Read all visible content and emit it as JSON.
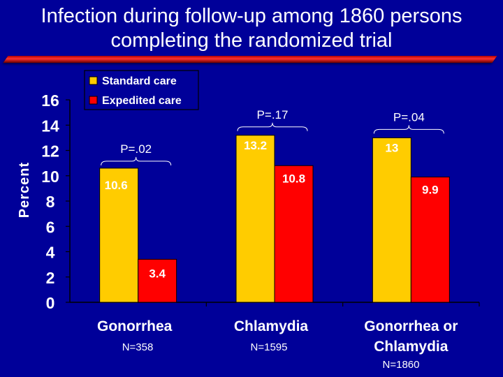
{
  "slide": {
    "title_line1": "Infection during follow-up among 1860 persons",
    "title_line2": "completing the randomized trial"
  },
  "colors": {
    "background": "#000099",
    "title_rule": "#e00000",
    "standard_care": "#ffcc00",
    "expedited_care": "#ff0000",
    "text": "#ffffff"
  },
  "chart_data": {
    "type": "bar",
    "title": "Infection during follow-up among 1860 persons completing the randomized trial",
    "ylabel": "Percent",
    "xlabel": "",
    "ylim": [
      0,
      16
    ],
    "yticks": [
      0,
      2,
      4,
      6,
      8,
      10,
      12,
      14,
      16
    ],
    "grid": false,
    "legend_position": "top-left",
    "categories": [
      {
        "lines": [
          "Gonorrhea"
        ],
        "n": "N=358",
        "p": "P=.02"
      },
      {
        "lines": [
          "Chlamydia"
        ],
        "n": "N=1595",
        "p": "P=.17"
      },
      {
        "lines": [
          "Gonorrhea or",
          "Chlamydia"
        ],
        "n": "N=1860",
        "p": "P=.04"
      }
    ],
    "series": [
      {
        "name": "Standard care",
        "color": "#ffcc00",
        "values": [
          10.6,
          13.2,
          13
        ],
        "labels": [
          "10.6",
          "13.2",
          "13"
        ]
      },
      {
        "name": "Expedited care",
        "color": "#ff0000",
        "values": [
          3.4,
          10.8,
          9.9
        ],
        "labels": [
          "3.4",
          "10.8",
          "9.9"
        ]
      }
    ]
  }
}
